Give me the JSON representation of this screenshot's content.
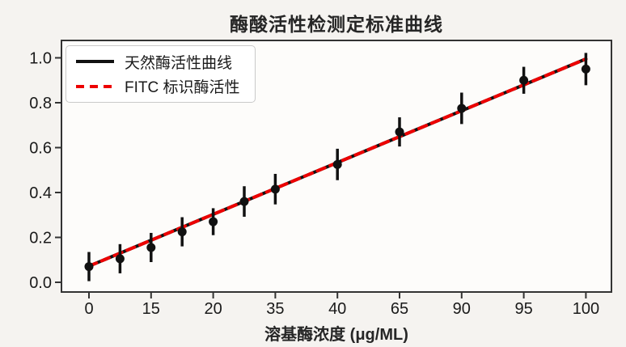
{
  "figure": {
    "background_color": "#f5f3f0",
    "plot_background_color": "#fdfcfa",
    "spine_color": "#333333",
    "tick_text_color": "#1a1a1a"
  },
  "chart_data": {
    "type": "line",
    "title": "酶酸活性检测定标准曲线",
    "xlabel": "溶基酶浓度 (μg/ML)",
    "ylabel": "",
    "x_axis": {
      "note": "tick labels are evenly spaced on screen despite uneven numeric values; positions given as even index units 0-16",
      "tick_labels": [
        "0",
        "15",
        "20",
        "35",
        "40",
        "65",
        "90",
        "95",
        "100"
      ],
      "tick_positions": [
        0,
        2,
        4,
        6,
        8,
        10,
        12,
        14,
        16
      ],
      "index_range": [
        0,
        16
      ]
    },
    "y_axis": {
      "tick_labels": [
        "0.0",
        "0.2",
        "0.4",
        "0.6",
        "0.8",
        "1.0"
      ],
      "tick_values": [
        0,
        0.2,
        0.4,
        0.6,
        0.8,
        1.0
      ],
      "ylim": [
        -0.04,
        1.08
      ]
    },
    "legend": {
      "position": "upper-left",
      "entries": [
        {
          "label": "天然酶活性曲线",
          "color": "#111111",
          "style": "solid"
        },
        {
          "label": "FITC 标识酶活性",
          "color": "#ed0000",
          "style": "dashed"
        }
      ]
    },
    "series": [
      {
        "name": "天然酶活性曲线",
        "style": "solid",
        "color": "#111111",
        "line_width": 4,
        "trend_x_index": [
          0,
          16
        ],
        "trend_y": [
          0.072,
          0.995
        ]
      },
      {
        "name": "FITC 标识酶活性",
        "style": "dashed",
        "color": "#ed0000",
        "line_width": 4,
        "dash_pattern": [
          10,
          7
        ],
        "trend_x_index": [
          0,
          16
        ],
        "trend_y": [
          0.072,
          0.995
        ]
      }
    ],
    "points": [
      {
        "x_index": 0,
        "x_value": 0,
        "y": 0.07,
        "yerr": 0.065
      },
      {
        "x_index": 1,
        "x_value": 7.5,
        "y": 0.105,
        "yerr": 0.065
      },
      {
        "x_index": 2,
        "x_value": 15,
        "y": 0.155,
        "yerr": 0.065
      },
      {
        "x_index": 3,
        "x_value": 17.5,
        "y": 0.225,
        "yerr": 0.065
      },
      {
        "x_index": 4,
        "x_value": 20,
        "y": 0.27,
        "yerr": 0.06
      },
      {
        "x_index": 5,
        "x_value": 27.5,
        "y": 0.36,
        "yerr": 0.068
      },
      {
        "x_index": 6,
        "x_value": 35,
        "y": 0.415,
        "yerr": 0.068
      },
      {
        "x_index": 8,
        "x_value": 40,
        "y": 0.525,
        "yerr": 0.07
      },
      {
        "x_index": 10,
        "x_value": 65,
        "y": 0.67,
        "yerr": 0.065
      },
      {
        "x_index": 12,
        "x_value": 90,
        "y": 0.775,
        "yerr": 0.07
      },
      {
        "x_index": 14,
        "x_value": 95,
        "y": 0.9,
        "yerr": 0.06
      },
      {
        "x_index": 16,
        "x_value": 100,
        "y": 0.95,
        "yerr": 0.072
      }
    ],
    "marker": {
      "shape": "circle",
      "color": "#111111",
      "radius": 5.5
    },
    "error_bar": {
      "color": "#111111",
      "line_width": 3.5,
      "caps": false
    }
  }
}
